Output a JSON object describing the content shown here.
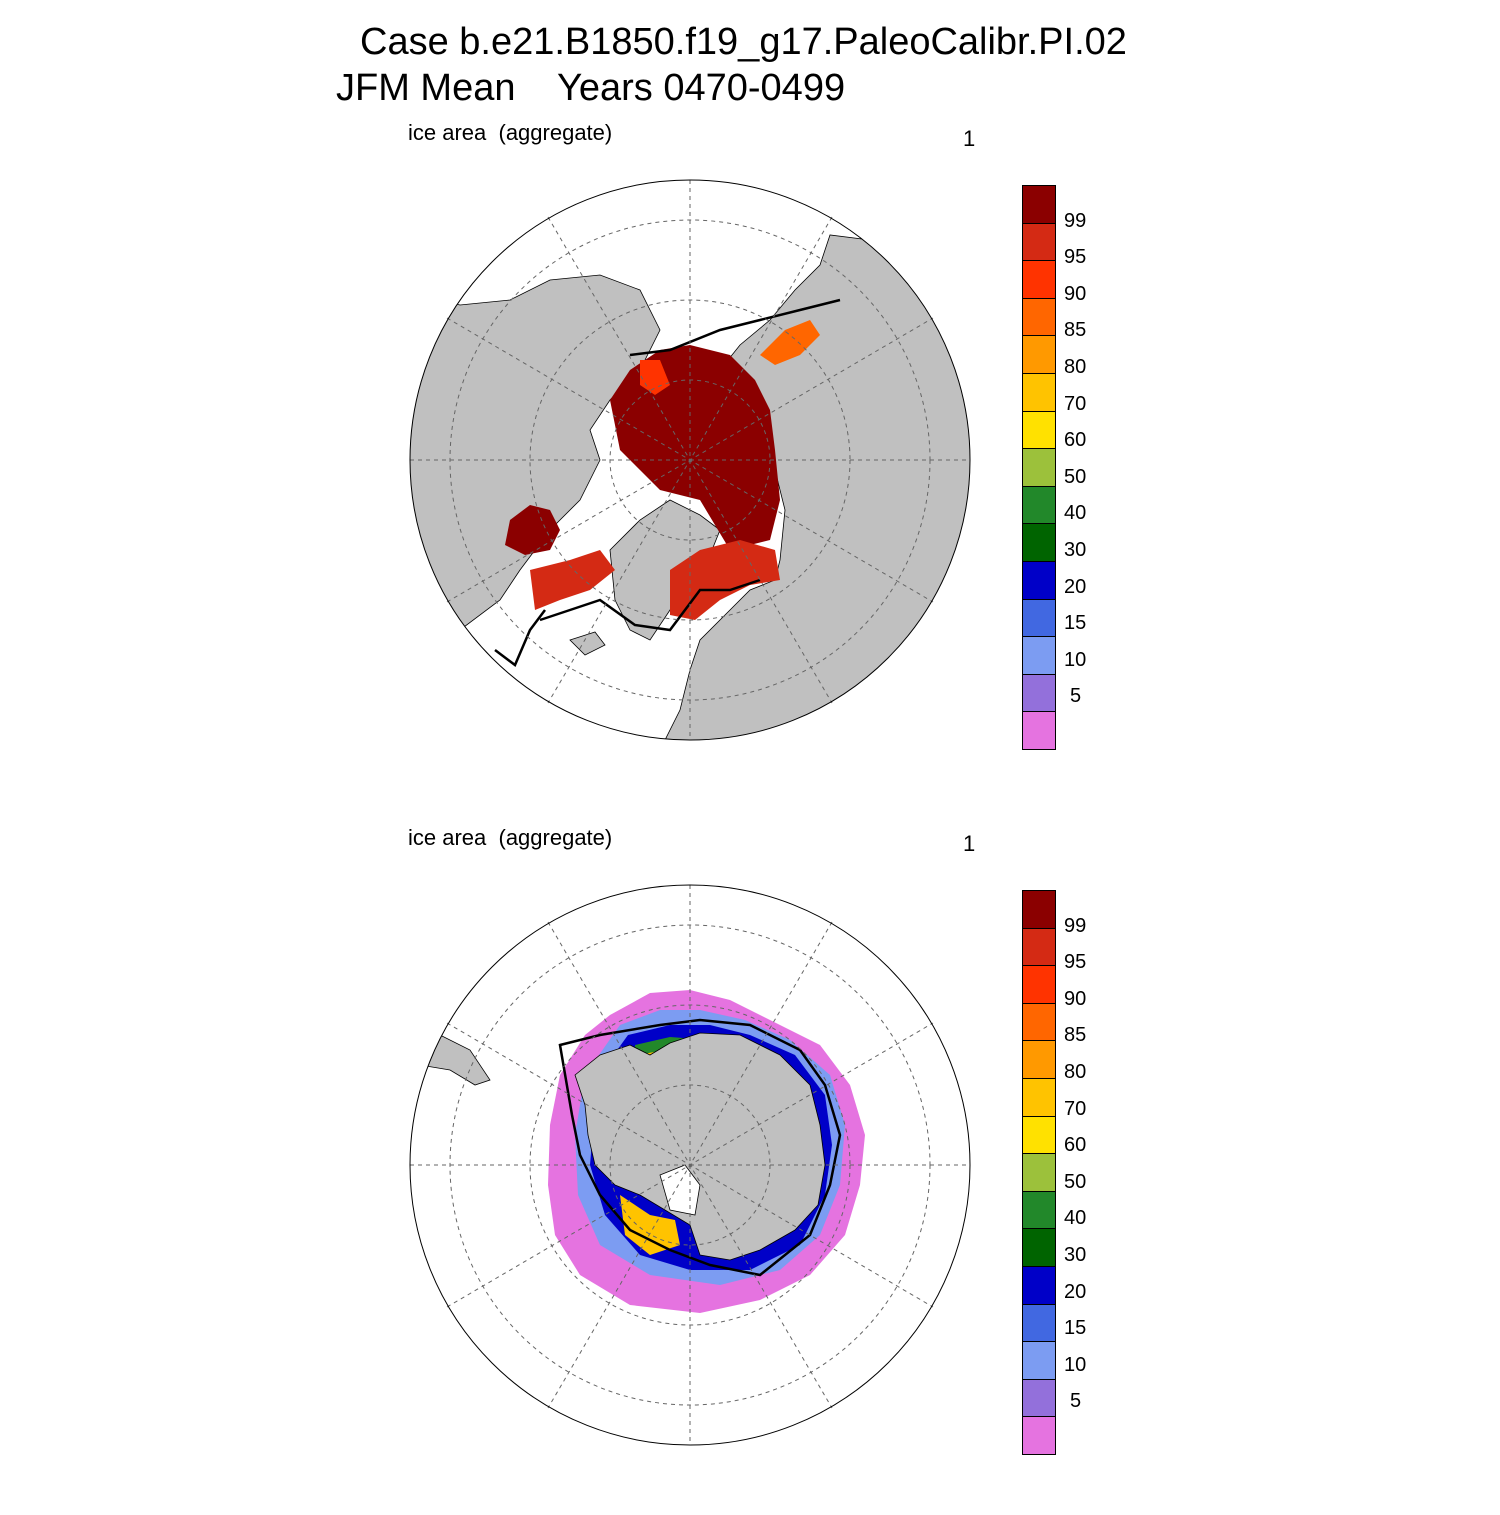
{
  "title_line1": "Case b.e21.B1850.f19_g17.PaleoCalibr.PI.02",
  "title_line2": "JFM Mean    Years 0470-0499",
  "panels": [
    {
      "id": "north",
      "left_label": "ice area  (aggregate)",
      "right_label": "1",
      "hemisphere": "Arctic (north polar stereographic)"
    },
    {
      "id": "south",
      "left_label": "ice area  (aggregate)",
      "right_label": "1",
      "hemisphere": "Antarctic (south polar stereographic)"
    }
  ],
  "colorbar": {
    "tick_labels": [
      "99",
      "95",
      "90",
      "85",
      "80",
      "70",
      "60",
      "50",
      "40",
      "30",
      "20",
      "15",
      "10",
      "5"
    ],
    "colors_top_to_bottom": [
      "#8b0000",
      "#d42a14",
      "#ff3300",
      "#ff6600",
      "#ff9900",
      "#ffc300",
      "#ffe100",
      "#9cc13b",
      "#22882a",
      "#006400",
      "#0000c8",
      "#4168e1",
      "#7c9cf2",
      "#9370db",
      "#e573e0"
    ]
  },
  "colors": {
    "land": "#c0c0c0",
    "ocean": "#ffffff",
    "contour": "#000000"
  }
}
